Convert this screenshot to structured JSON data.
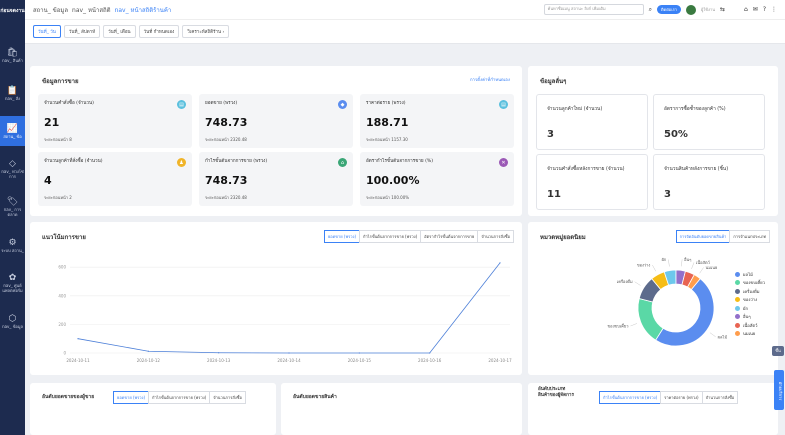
{
  "sidebar": {
    "logo": "ก่อนจดงาน",
    "items": [
      {
        "icon": "🛍",
        "label": "nav_ สินค้า"
      },
      {
        "icon": "📋",
        "label": "nav_ สั่ง"
      },
      {
        "icon": "📈",
        "label": "สถาน_ ข้อ"
      },
      {
        "icon": "◇",
        "label": "nav_ ห่วงโซ่การ"
      },
      {
        "icon": "🏷",
        "label": "nav_ การ ตลาด"
      },
      {
        "icon": "⚙",
        "label": "ระบบ สถาน_"
      },
      {
        "icon": "✿",
        "label": "nav_ ศูนย์ แพลตฟอร์ม"
      },
      {
        "icon": "⬡",
        "label": "nav_ ข้อมูล"
      }
    ]
  },
  "header": {
    "crumbs": [
      "สถาน_ ข้อมูล",
      "nav_ หน้าสถิติ",
      "nav_ หน้าสถิติร้านค้า"
    ],
    "search_placeholder": "ค้นหาชื่อเมนู สถานะ ลิงก์ เพิ่มเติม",
    "pill": "ติดต่อเรา",
    "user": "ผู้ใช้งาน"
  },
  "tabs": [
    "วันที่_ วัน",
    "วันที่_ สัปดาห์",
    "วันที่_ เดือน",
    "วันที่ กำหนดเอง",
    "วิเคราะห์สถิติร้าน ›"
  ],
  "overview": {
    "title": "ข้อมูลการขาย",
    "link": "การตั้งค่าที่กำหนดเอง",
    "stats": [
      {
        "label": "จำนวนคำสั่งซื้อ (จำนวน)",
        "value": "21",
        "sub": "ระยะก่อนหน้า   8",
        "color": "#5bc0de",
        "icon": "▤"
      },
      {
        "label": "ยอดขาย (พรวง)",
        "value": "748.73",
        "sub": "ระยะก่อนหน้า   2320.48",
        "color": "#5b8def",
        "icon": "◆"
      },
      {
        "label": "ราคาต่อราย (พรวง)",
        "value": "188.71",
        "sub": "ระยะก่อนหน้า   1157.30",
        "color": "#5bc0de",
        "icon": "▤"
      },
      {
        "label": "จำนวนลูกค้าที่สั่งซื้อ (จำนวน)",
        "value": "4",
        "sub": "ระยะก่อนหน้า   2",
        "color": "#f0b429",
        "icon": "♟"
      },
      {
        "label": "กำไรขั้นต้นจากการขาย (พรวง)",
        "value": "748.73",
        "sub": "ระยะก่อนหน้า   2320.48",
        "color": "#3aa676",
        "icon": "⌂"
      },
      {
        "label": "อัตรากำไรขั้นต้นจากการขาย (%)",
        "value": "100.00%",
        "sub": "ระยะก่อนหน้า   100.00%",
        "color": "#9b59b6",
        "icon": "✕"
      }
    ]
  },
  "customers": {
    "title": "ข้อมูลลั่นๆ",
    "boxes": [
      {
        "label": "จำนวนลูกค้าใหม่ (จำนวน)",
        "value": "3"
      },
      {
        "label": "อัตราการซื้อซ้ำของลูกค้า (%)",
        "value": "50%"
      },
      {
        "label": "จำนวนคำสั่งซื้อหลังการขาย (จำนวน)",
        "value": "11"
      },
      {
        "label": "จำนวนสินค้าหลังการขาย (ชิ้น)",
        "value": "3"
      }
    ]
  },
  "trend": {
    "title": "แนวโน้มการขาย",
    "tabs": [
      "ยอดขาย (พรวง)",
      "กำไรขั้นต้นจากการขาย (พรวง)",
      "อัตรากำไรขั้นต้นจากการขาย",
      "จำนวนการสั่งซื้อ"
    ]
  },
  "chart_data": [
    {
      "type": "line",
      "x": [
        "2024-10-11",
        "2024-10-12",
        "2024-10-13",
        "2024-10-14",
        "2024-10-15",
        "2024-10-16",
        "2024-10-17"
      ],
      "y_ticks": [
        "0",
        "200",
        "400",
        "600"
      ],
      "ylim": [
        0,
        650
      ],
      "series": [
        {
          "values": [
            100,
            12,
            2,
            0,
            0,
            0,
            630
          ]
        }
      ],
      "color": "#4c7fd8",
      "grid": true
    },
    {
      "type": "pie",
      "labels": [
        "ผลไม้",
        "ของขบเคี้ยว",
        "เครื่องดื่ม",
        "ของว่าง",
        "ผัก",
        "อื่นๆ",
        "เนื้อสัตว์",
        "นมเนย"
      ],
      "values": [
        48,
        20,
        10,
        6,
        5,
        4,
        4,
        3
      ],
      "colors": [
        "#5b8def",
        "#5ad8a6",
        "#5d6b8c",
        "#f6bd16",
        "#6dc8ec",
        "#9270ca",
        "#e86452",
        "#ff9d4d"
      ],
      "legend_labels": [
        "ผลไม้",
        "ของขบเคี้ยว",
        "เครื่องดื่ม",
        "ของว่าง",
        "ผัก",
        "อื่นๆ",
        "เนื้อสัตว์",
        "นมเนย"
      ]
    }
  ],
  "category": {
    "title": "หมวดหมู่ยอดนิยม",
    "tabs": [
      "การจัดอันดับยอดขายสินค้า",
      "การจำแนกประเภท"
    ]
  },
  "bottom": {
    "left_title": "อันดับยอดขายของผู้ขาย",
    "left_tabs": [
      "ยอดขาย (พรวง)",
      "กำไรขั้นต้นจากการขาย (พรวง)",
      "จำนวนการสั่งซื้อ"
    ],
    "mid_title": "อันดับยอดขายสินค้า",
    "right_title": "อันดับประเภทสินค้าของผู้จัดการ",
    "right_tabs": [
      "กำไรขั้นต้นจากการขาย (พรวง)",
      "ราคาต่อราย (พรวง)",
      "จำนวนการสั่งซื้อ"
    ]
  },
  "float": {
    "top": "ขึ้น",
    "side": "ฝ่ายบริการ"
  }
}
